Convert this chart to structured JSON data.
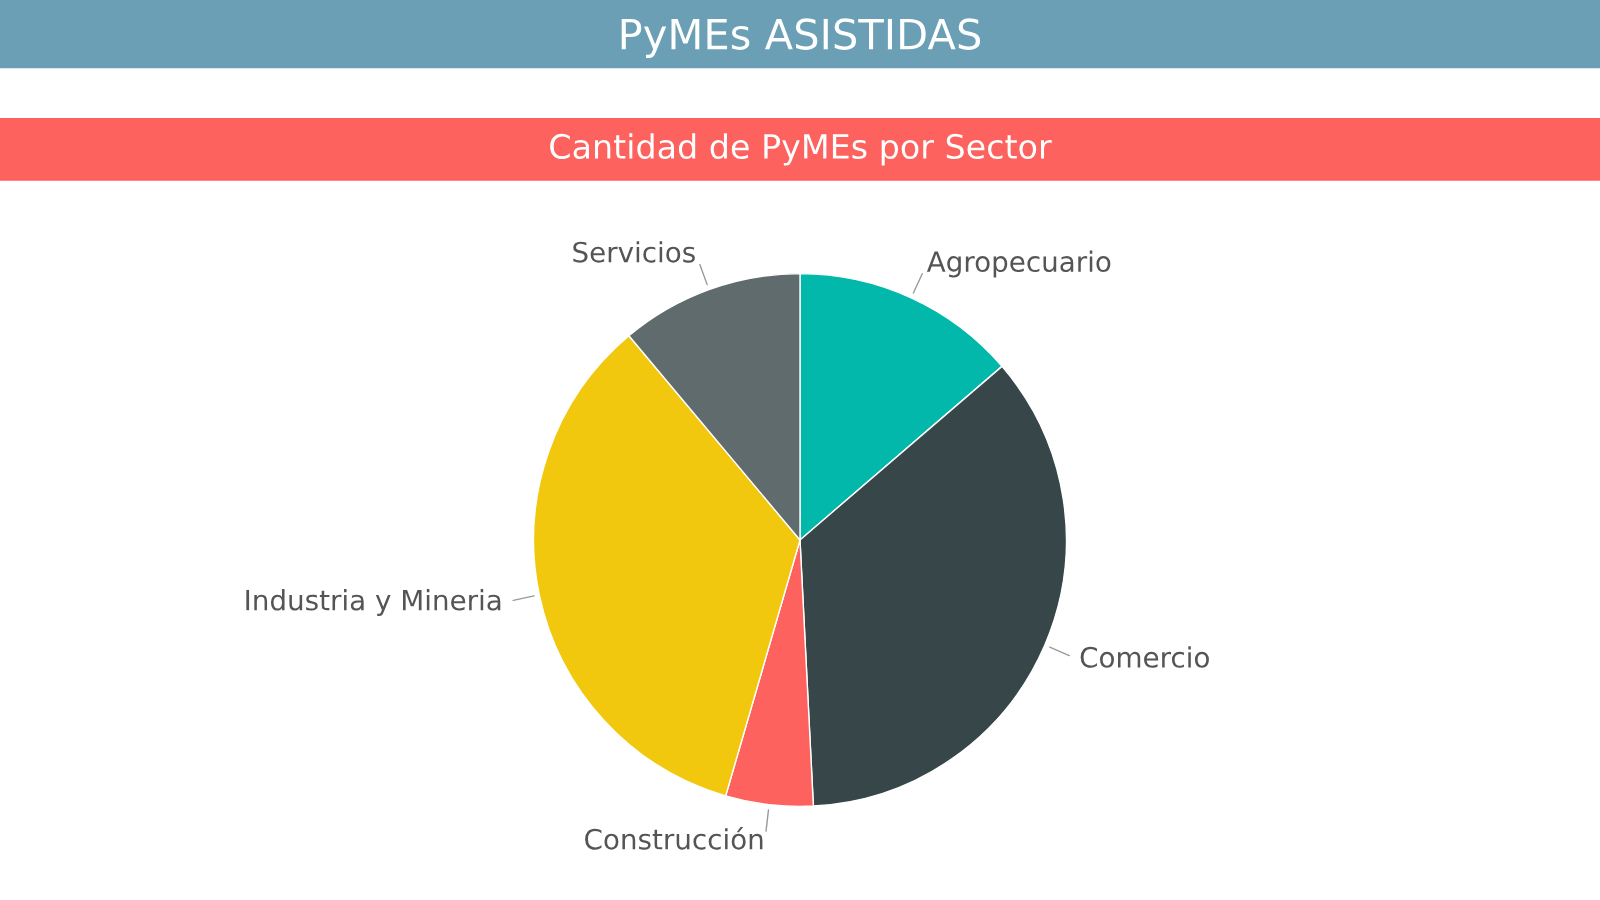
{
  "chart_data": {
    "type": "pie",
    "title": "PyMEs ASISTIDAS",
    "subtitle": "Cantidad de PyMEs por Sector",
    "categories": [
      "Agropecuario",
      "Comercio",
      "Construcción",
      "Industria y Mineria",
      "Servicios"
    ],
    "values": [
      13.7,
      35.5,
      5.3,
      34.4,
      11.1
    ],
    "colors": [
      "#01b8aa",
      "#374649",
      "#fd625e",
      "#f2c80f",
      "#5f6b6d"
    ]
  }
}
